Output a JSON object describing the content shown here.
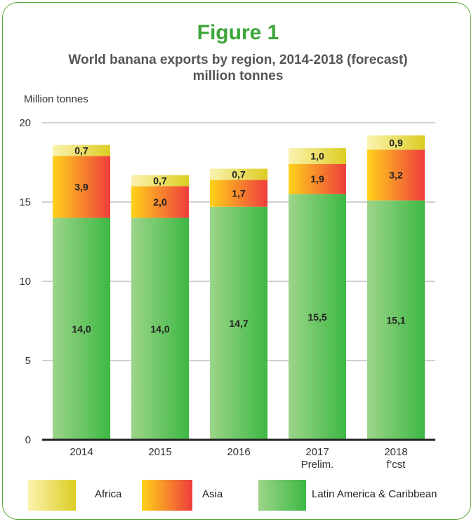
{
  "chart_data": {
    "type": "bar",
    "stacked": true,
    "title": "Figure 1",
    "subtitle_line1": "World banana exports by region, 2014-2018 (forecast)",
    "subtitle_line2": "million tonnes",
    "ylabel": "Million tonnes",
    "ylim": [
      0,
      20
    ],
    "yticks": [
      "0",
      "5",
      "10",
      "15",
      "20"
    ],
    "grid": true,
    "categories": [
      "2014",
      "2015",
      "2016",
      "2017",
      "2018"
    ],
    "category_sublabels": [
      "",
      "",
      "",
      "Prelim.",
      "f’cst"
    ],
    "series": [
      {
        "name": "Latin America & Caribbean",
        "values": [
          14.0,
          14.0,
          14.7,
          15.5,
          15.1
        ],
        "labels": [
          "14,0",
          "14,0",
          "14,7",
          "15,5",
          "15,1"
        ],
        "color_light": "#9dd58a",
        "color_dark": "#3db844"
      },
      {
        "name": "Asia",
        "values": [
          3.9,
          2.0,
          1.7,
          1.9,
          3.2
        ],
        "labels": [
          "3,9",
          "2,0",
          "1,7",
          "1,9",
          "3,2"
        ],
        "color_light": "#ffd21a",
        "color_dark": "#ee3d3d"
      },
      {
        "name": "Africa",
        "values": [
          0.7,
          0.7,
          0.7,
          1.0,
          0.9
        ],
        "labels": [
          "0,7",
          "0,7",
          "0,7",
          "1,0",
          "0,9"
        ],
        "color_light": "#fbf3b0",
        "color_dark": "#dccd22"
      }
    ],
    "legend_position": "bottom"
  }
}
